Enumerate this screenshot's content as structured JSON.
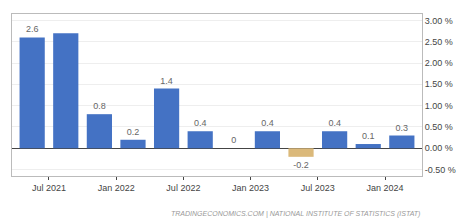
{
  "chart_data": {
    "type": "bar",
    "categories": [
      "Jul 2021",
      null,
      "Jan 2022",
      null,
      "Jul 2022",
      null,
      "Jan 2023",
      null,
      "Jul 2023",
      null,
      "Jan 2024",
      null
    ],
    "values": [
      2.6,
      2.7,
      0.8,
      0.2,
      1.4,
      0.4,
      0.0,
      0.4,
      -0.2,
      0.4,
      0.1,
      0.3
    ],
    "value_labels": [
      "2.6",
      null,
      "0.8",
      "0.2",
      "1.4",
      "0.4",
      "0",
      "0.4",
      "-0.2",
      "0.4",
      "0.1",
      "0.3"
    ],
    "data_labels": true,
    "colors": [
      "#4472c4",
      "#4472c4",
      "#4472c4",
      "#4472c4",
      "#4472c4",
      "#4472c4",
      "#4472c4",
      "#4472c4",
      "#dbb97a",
      "#4472c4",
      "#4472c4",
      "#4472c4"
    ],
    "ylim": [
      -0.65,
      3.15
    ],
    "yticks": [
      {
        "value": -0.5,
        "label": "-0.50 %"
      },
      {
        "value": 0.0,
        "label": "0.00 %"
      },
      {
        "value": 0.5,
        "label": "0.50 %"
      },
      {
        "value": 1.0,
        "label": "1.00 %"
      },
      {
        "value": 1.5,
        "label": "1.50 %"
      },
      {
        "value": 2.0,
        "label": "2.00 %"
      },
      {
        "value": 2.5,
        "label": "2.50 %"
      },
      {
        "value": 3.0,
        "label": "3.00 %"
      }
    ],
    "grid": true,
    "annotations": [
      "TRADINGECONOMICS.COM | NATIONAL INSTITUTE OF STATISTICS (ISTAT)"
    ]
  }
}
